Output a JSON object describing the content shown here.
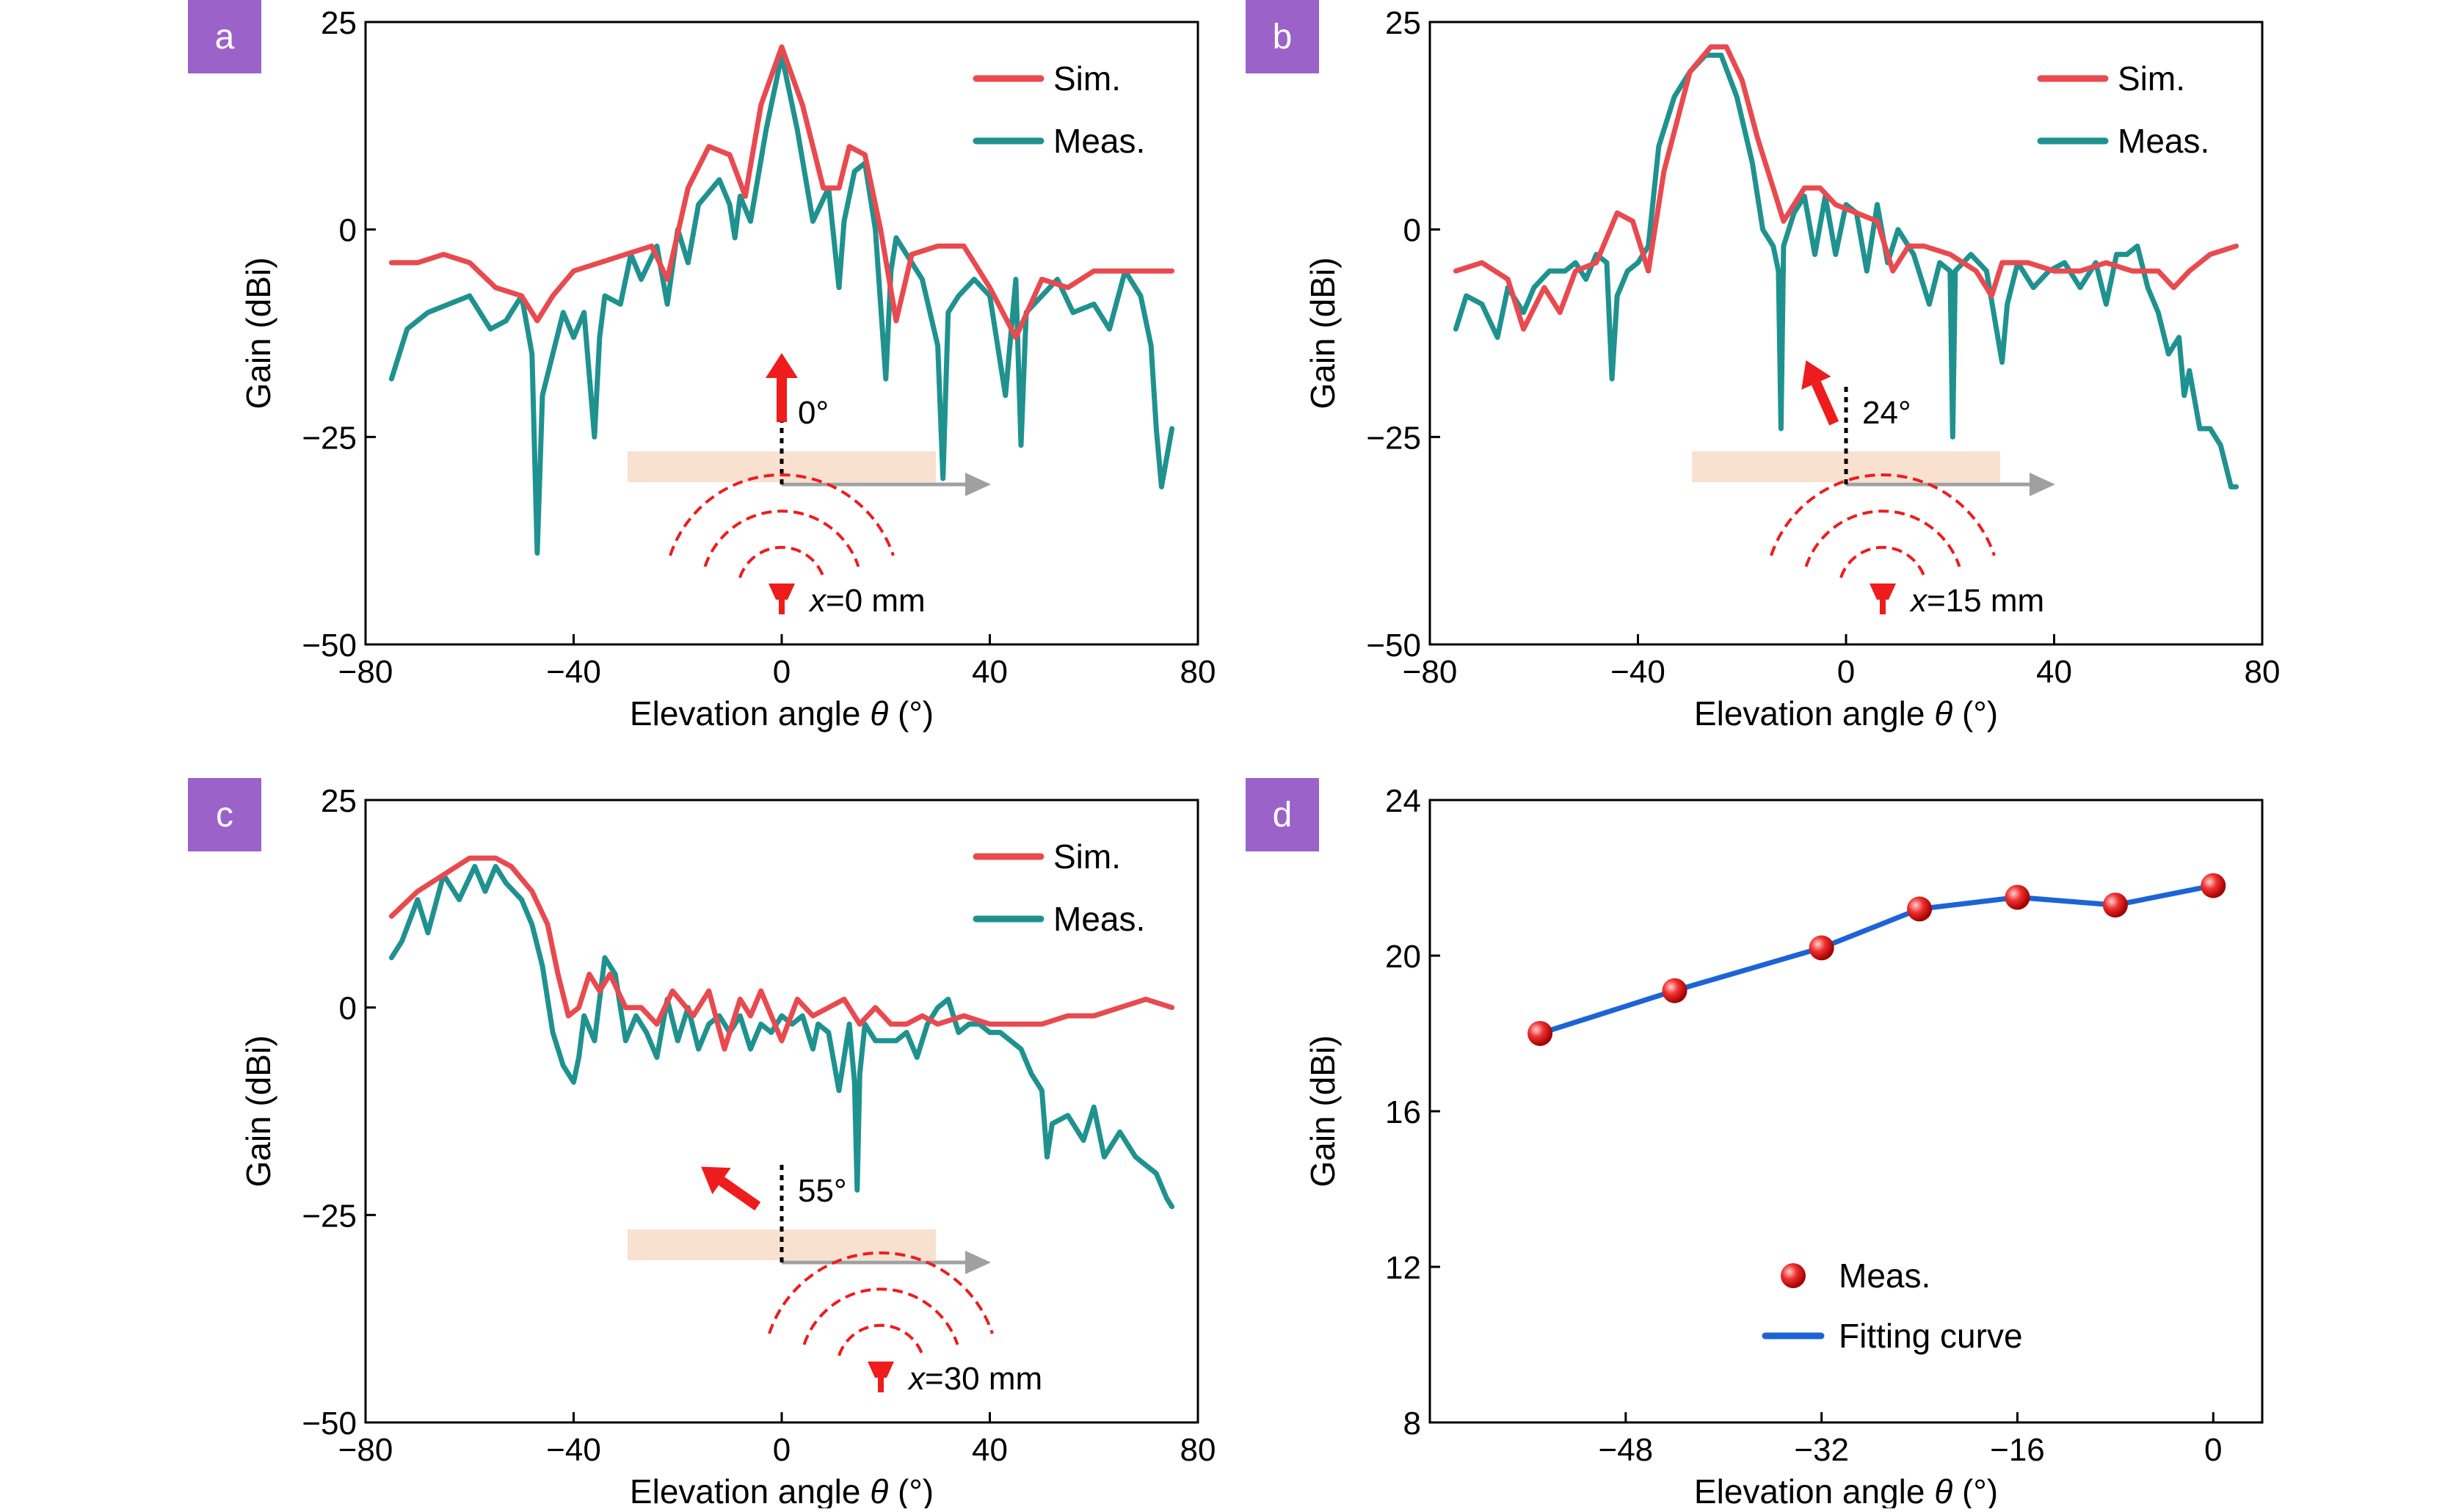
{
  "colors": {
    "sim": "#e84a4f",
    "meas": "#1f9290",
    "fit": "#1c64d6",
    "badge": "#9b62c9",
    "plate": "#f9e1d0",
    "arrow": "#a0a0a0",
    "source": "#ee1c1c"
  },
  "chart_data": [
    {
      "panel": "a",
      "type": "line",
      "xlabel_prefix": "Elevation angle ",
      "xlabel_var": "θ",
      "xlabel_suffix": " (°)",
      "ylabel": "Gain (dBi)",
      "xlim": [
        -80,
        80
      ],
      "ylim": [
        -50,
        25
      ],
      "xticks": [
        "−80",
        "−40",
        "0",
        "40",
        "80"
      ],
      "xtick_values": [
        -80,
        -40,
        0,
        40,
        80
      ],
      "yticks": [
        "25",
        "0",
        "−25",
        "−50"
      ],
      "ytick_values": [
        25,
        0,
        -25,
        -50
      ],
      "legend": [
        "Sim.",
        "Meas."
      ],
      "inset": {
        "angle_deg": 0,
        "angle_label": "0°",
        "pos_var": "x",
        "pos_text": "=0 mm"
      },
      "series": [
        {
          "name": "Sim.",
          "x": [
            -75,
            -70,
            -65,
            -60,
            -55,
            -50,
            -47,
            -44,
            -40,
            -35,
            -30,
            -25,
            -22,
            -18,
            -14,
            -10,
            -7,
            -4,
            0,
            4,
            8,
            11,
            13,
            16,
            19,
            22,
            25,
            30,
            35,
            40,
            45,
            50,
            55,
            60,
            65,
            70,
            75
          ],
          "y": [
            -4,
            -4,
            -3,
            -4,
            -7,
            -8,
            -11,
            -8,
            -5,
            -4,
            -3,
            -2,
            -6,
            5,
            10,
            9,
            4,
            15,
            22,
            15,
            5,
            5,
            10,
            9,
            0,
            -11,
            -3,
            -2,
            -2,
            -7,
            -13,
            -6,
            -7,
            -5,
            -5,
            -5,
            -5
          ]
        },
        {
          "name": "Meas.",
          "x": [
            -75,
            -72,
            -68,
            -64,
            -60,
            -56,
            -53,
            -50,
            -48,
            -47,
            -46,
            -44,
            -42,
            -40,
            -38,
            -36,
            -35,
            -34,
            -31,
            -29,
            -27,
            -24,
            -22,
            -20,
            -18,
            -16,
            -12,
            -10,
            -9,
            -8,
            -6,
            -3,
            0,
            3,
            6,
            9,
            11,
            12,
            14,
            16,
            18,
            20,
            21,
            22,
            24,
            27,
            30,
            31,
            32,
            34,
            37,
            40,
            43,
            45,
            46,
            47,
            50,
            53,
            56,
            60,
            63,
            66,
            69,
            71,
            72,
            73,
            75
          ],
          "y": [
            -18,
            -12,
            -10,
            -9,
            -8,
            -12,
            -11,
            -8,
            -15,
            -39,
            -20,
            -15,
            -10,
            -13,
            -10,
            -25,
            -13,
            -8,
            -9,
            -3,
            -6,
            -2,
            -9,
            0,
            -4,
            3,
            6,
            3,
            -1,
            4,
            1,
            12,
            21,
            12,
            1,
            5,
            -7,
            1,
            7,
            8,
            0,
            -18,
            -5,
            -1,
            -3,
            -6,
            -14,
            -30,
            -10,
            -8,
            -6,
            -8,
            -20,
            -6,
            -26,
            -10,
            -8,
            -6,
            -10,
            -9,
            -12,
            -5,
            -8,
            -14,
            -24,
            -31,
            -24
          ]
        }
      ]
    },
    {
      "panel": "b",
      "type": "line",
      "xlabel_prefix": "Elevation angle ",
      "xlabel_var": "θ",
      "xlabel_suffix": " (°)",
      "ylabel": "Gain (dBi)",
      "xlim": [
        -80,
        80
      ],
      "ylim": [
        -50,
        25
      ],
      "xticks": [
        "−80",
        "−40",
        "0",
        "40",
        "80"
      ],
      "xtick_values": [
        -80,
        -40,
        0,
        40,
        80
      ],
      "yticks": [
        "25",
        "0",
        "−25",
        "−50"
      ],
      "ytick_values": [
        25,
        0,
        -25,
        -50
      ],
      "legend": [
        "Sim.",
        "Meas."
      ],
      "inset": {
        "angle_deg": 24,
        "angle_label": "24°",
        "pos_var": "x",
        "pos_text": "=15 mm"
      },
      "series": [
        {
          "name": "Sim.",
          "x": [
            -75,
            -70,
            -65,
            -62,
            -58,
            -55,
            -52,
            -48,
            -44,
            -41,
            -38,
            -35,
            -30,
            -26,
            -23,
            -20,
            -17,
            -14,
            -12,
            -10,
            -8,
            -5,
            -2,
            2,
            6,
            9,
            12,
            15,
            20,
            25,
            28,
            30,
            35,
            40,
            45,
            50,
            55,
            60,
            63,
            66,
            70,
            75
          ],
          "y": [
            -5,
            -4,
            -6,
            -12,
            -7,
            -10,
            -5,
            -4,
            2,
            1,
            -5,
            7,
            19,
            22,
            22,
            18,
            11,
            5,
            1,
            3,
            5,
            5,
            3,
            2,
            1,
            -5,
            -2,
            -2,
            -3,
            -5,
            -8,
            -4,
            -4,
            -5,
            -5,
            -4,
            -5,
            -5,
            -7,
            -5,
            -3,
            -2
          ]
        },
        {
          "name": "Meas.",
          "x": [
            -75,
            -73,
            -70,
            -67,
            -65,
            -62,
            -60,
            -57,
            -54,
            -52,
            -50,
            -48,
            -46,
            -45,
            -44,
            -42,
            -40,
            -38,
            -36,
            -33,
            -30,
            -27,
            -24,
            -21,
            -18,
            -16,
            -14,
            -13,
            -12.5,
            -12,
            -10,
            -8,
            -6,
            -4,
            -2,
            0,
            2,
            4,
            6,
            8,
            10,
            13,
            16,
            18,
            20,
            20.5,
            21,
            24,
            27,
            30,
            31,
            33,
            36,
            39,
            42,
            45,
            48,
            50,
            52,
            54,
            56,
            58,
            60,
            62,
            64,
            65,
            66,
            68,
            70,
            72,
            74,
            75
          ],
          "y": [
            -12,
            -8,
            -9,
            -13,
            -7,
            -10,
            -7,
            -5,
            -5,
            -4,
            -6,
            -3,
            -4,
            -18,
            -8,
            -5,
            -4,
            -2,
            10,
            16,
            19,
            21,
            21,
            16,
            8,
            0,
            -2,
            -5,
            -24,
            -2,
            2,
            4,
            -3,
            4,
            -3,
            3,
            2,
            -5,
            3,
            -4,
            0,
            -3,
            -9,
            -4,
            -5,
            -25,
            -5,
            -3,
            -5,
            -16,
            -9,
            -4,
            -7,
            -5,
            -4,
            -7,
            -4,
            -9,
            -3,
            -3,
            -2,
            -7,
            -10,
            -15,
            -13,
            -20,
            -17,
            -24,
            -24,
            -26,
            -31,
            -31
          ]
        }
      ]
    },
    {
      "panel": "c",
      "type": "line",
      "xlabel_prefix": "Elevation angle ",
      "xlabel_var": "θ",
      "xlabel_suffix": " (°)",
      "ylabel": "Gain (dBi)",
      "xlim": [
        -80,
        80
      ],
      "ylim": [
        -50,
        25
      ],
      "xticks": [
        "−80",
        "−40",
        "0",
        "40",
        "80"
      ],
      "xtick_values": [
        -80,
        -40,
        0,
        40,
        80
      ],
      "yticks": [
        "25",
        "0",
        "−25",
        "−50"
      ],
      "ytick_values": [
        25,
        0,
        -25,
        -50
      ],
      "legend": [
        "Sim.",
        "Meas."
      ],
      "inset": {
        "angle_deg": 55,
        "angle_label": "55°",
        "pos_var": "x",
        "pos_text": "=30 mm"
      },
      "series": [
        {
          "name": "Sim.",
          "x": [
            -75,
            -70,
            -65,
            -60,
            -55,
            -52,
            -48,
            -45,
            -43,
            -41,
            -39,
            -37,
            -35,
            -33,
            -30,
            -27,
            -24,
            -21,
            -17,
            -14,
            -11,
            -8,
            -6,
            -4,
            -2,
            0,
            3,
            6,
            9,
            12,
            15,
            18,
            21,
            24,
            27,
            30,
            35,
            40,
            45,
            50,
            55,
            60,
            65,
            70,
            75
          ],
          "y": [
            11,
            14,
            16,
            18,
            18,
            17,
            14,
            10,
            4,
            -1,
            0,
            4,
            2,
            4,
            0,
            0,
            -2,
            2,
            -1,
            2,
            -5,
            1,
            -1,
            2,
            -1,
            -4,
            1,
            -1,
            0,
            1,
            -2,
            0,
            -2,
            -2,
            -1,
            -2,
            -1,
            -2,
            -2,
            -2,
            -1,
            -1,
            0,
            1,
            0
          ]
        },
        {
          "name": "Meas.",
          "x": [
            -75,
            -73,
            -70,
            -68,
            -65,
            -62,
            -59,
            -57,
            -55,
            -53,
            -50,
            -48,
            -46,
            -44,
            -42,
            -40,
            -39,
            -38,
            -36,
            -34,
            -32,
            -30,
            -28,
            -26,
            -24,
            -22,
            -20,
            -18,
            -16,
            -14,
            -12,
            -10,
            -8,
            -6,
            -4,
            -2,
            0,
            2,
            4,
            6,
            7,
            9,
            11,
            12,
            13,
            14,
            14.5,
            15,
            16,
            18,
            20,
            22,
            24,
            26,
            28,
            30,
            32,
            34,
            36,
            38,
            40,
            42,
            44,
            46,
            48,
            50,
            51,
            52,
            55,
            58,
            60,
            62,
            65,
            68,
            70,
            72,
            74,
            75
          ],
          "y": [
            6,
            8,
            13,
            9,
            16,
            13,
            17,
            14,
            17,
            15,
            13,
            10,
            5,
            -3,
            -7,
            -9,
            -6,
            -1,
            -4,
            6,
            4,
            -4,
            -1,
            -3,
            -6,
            1,
            -4,
            0,
            -5,
            -2,
            -1,
            -3,
            -1,
            -5,
            -2,
            -3,
            -1,
            -2,
            -1,
            -5,
            -2,
            -3,
            -10,
            -6,
            -2,
            -9,
            -22,
            -8,
            -2,
            -4,
            -4,
            -4,
            -3,
            -6,
            -2,
            0,
            1,
            -3,
            -2,
            -2,
            -3,
            -3,
            -4,
            -5,
            -8,
            -10,
            -18,
            -14,
            -13,
            -16,
            -12,
            -18,
            -15,
            -18,
            -19,
            -20,
            -23,
            -24
          ]
        }
      ]
    },
    {
      "panel": "d",
      "type": "scatter",
      "xlabel_prefix": "Elevation angle ",
      "xlabel_var": "θ",
      "xlabel_suffix": " (°)",
      "ylabel": "Gain (dBi)",
      "xlim": [
        -64,
        4
      ],
      "ylim": [
        8,
        24
      ],
      "xticks": [
        "−48",
        "−32",
        "−16",
        "0"
      ],
      "xtick_values": [
        -48,
        -32,
        -16,
        0
      ],
      "yticks": [
        "24",
        "20",
        "16",
        "12",
        "8"
      ],
      "ytick_values": [
        24,
        20,
        16,
        12,
        8
      ],
      "legend": [
        "Meas.",
        "Fitting curve"
      ],
      "series": [
        {
          "name": "Meas.",
          "x": [
            -55,
            -44,
            -32,
            -24,
            -16,
            -8,
            0
          ],
          "y": [
            18.0,
            19.1,
            20.2,
            21.2,
            21.5,
            21.3,
            21.8
          ]
        },
        {
          "name": "Fitting curve",
          "x": [
            -55,
            -44,
            -32,
            -24,
            -16,
            -8,
            0
          ],
          "y": [
            18.0,
            19.1,
            20.2,
            21.2,
            21.5,
            21.3,
            21.8
          ]
        }
      ]
    }
  ]
}
